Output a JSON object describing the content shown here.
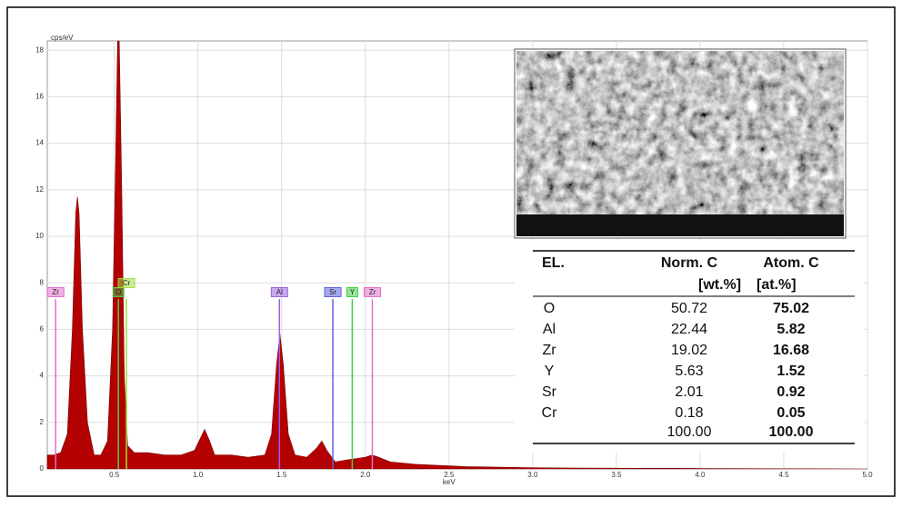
{
  "chart_data": {
    "type": "area",
    "x_label": "keV",
    "y_label": "cps/eV",
    "color": "#b30000",
    "grid": true,
    "xlim": [
      0.1,
      5.0
    ],
    "ylim": [
      0,
      18.4
    ],
    "xticks": [
      0.5,
      {
        "value": 1,
        "label": "1.0"
      },
      1.5,
      {
        "value": 2,
        "label": "2.0"
      },
      2.5,
      {
        "value": 3,
        "label": "3.0"
      },
      3.5,
      {
        "value": 4,
        "label": "4.0"
      },
      4.5,
      {
        "value": 5,
        "label": "5.0"
      }
    ],
    "yticks": [
      0,
      2,
      4,
      6,
      8,
      10,
      12,
      14,
      16,
      18
    ],
    "x": [
      0.1,
      0.14,
      0.18,
      0.22,
      0.25,
      0.27,
      0.28,
      0.29,
      0.31,
      0.34,
      0.38,
      0.42,
      0.46,
      0.49,
      0.51,
      0.52,
      0.525,
      0.53,
      0.545,
      0.56,
      0.58,
      0.62,
      0.7,
      0.8,
      0.9,
      0.98,
      1.02,
      1.04,
      1.07,
      1.1,
      1.2,
      1.3,
      1.4,
      1.44,
      1.47,
      1.49,
      1.51,
      1.54,
      1.58,
      1.65,
      1.71,
      1.74,
      1.77,
      1.82,
      1.9,
      2.0,
      2.04,
      2.08,
      2.15,
      2.3,
      2.6,
      3.0,
      3.5,
      4.0,
      4.5,
      5.0
    ],
    "values": [
      0.6,
      0.6,
      0.7,
      1.5,
      6,
      11,
      11.7,
      11,
      6,
      2,
      0.6,
      0.6,
      1.2,
      6,
      14,
      18.4,
      18.4,
      18.4,
      12,
      4,
      1,
      0.7,
      0.7,
      0.6,
      0.6,
      0.8,
      1.4,
      1.7,
      1.2,
      0.6,
      0.6,
      0.5,
      0.6,
      1.5,
      4.5,
      5.8,
      4.5,
      1.5,
      0.6,
      0.5,
      0.9,
      1.2,
      0.8,
      0.3,
      0.4,
      0.5,
      0.6,
      0.5,
      0.3,
      0.2,
      0.1,
      0.05,
      0.03,
      0.02,
      0.01,
      0
    ],
    "markers": [
      {
        "name": "Zr",
        "x": 0.15,
        "color": "#e070c8"
      },
      {
        "name": "O",
        "x": 0.525,
        "color": "#50c850"
      },
      {
        "name": "Cr",
        "x": 0.573,
        "color": "#a0e040"
      },
      {
        "name": "Al",
        "x": 1.487,
        "color": "#9a60e0"
      },
      {
        "name": "Sr",
        "x": 1.806,
        "color": "#6060e0"
      },
      {
        "name": "Y",
        "x": 1.922,
        "color": "#40d040"
      },
      {
        "name": "Zr",
        "x": 2.042,
        "color": "#e070c8"
      }
    ]
  },
  "table": {
    "headers": [
      "EL.",
      "Norm. C",
      "Atom. C"
    ],
    "units": [
      "[wt.%]",
      "[at.%]"
    ],
    "rows": [
      [
        "O",
        "50.72",
        "75.02"
      ],
      [
        "Al",
        "22.44",
        "5.82"
      ],
      [
        "Zr",
        "19.02",
        "16.68"
      ],
      [
        "Y",
        "5.63",
        "1.52"
      ],
      [
        "Sr",
        "2.01",
        "0.92"
      ],
      [
        "Cr",
        "0.18",
        "0.05"
      ]
    ],
    "total": [
      "100.00",
      "100.00"
    ]
  }
}
